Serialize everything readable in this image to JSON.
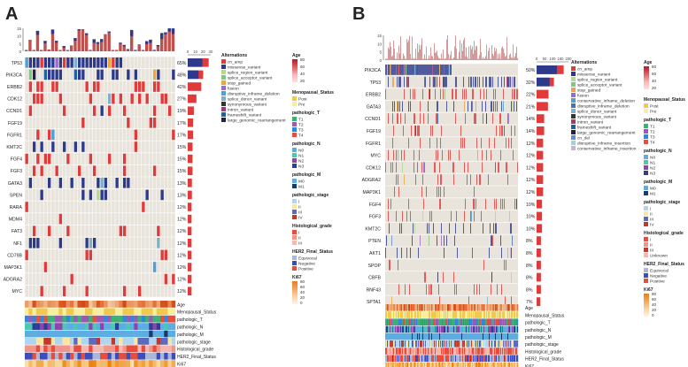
{
  "panels": [
    {
      "label": "A",
      "genes": [
        "TP53",
        "PIK3CA",
        "ERBB2",
        "CDK12",
        "CCND1",
        "FGF19",
        "FGFR1",
        "KMT2C",
        "FGF4",
        "FGF3",
        "GATA3",
        "SPEN",
        "RARA",
        "MDM4",
        "FAT3",
        "NF1",
        "CD79B",
        "MAP3K1",
        "ADGRA2",
        "MYC"
      ],
      "percents": [
        "65%",
        "48%",
        "42%",
        "27%",
        "19%",
        "17%",
        "17%",
        "15%",
        "15%",
        "15%",
        "13%",
        "13%",
        "12%",
        "12%",
        "12%",
        "12%",
        "12%",
        "12%",
        "12%",
        "12%"
      ],
      "bar_axis_ticks": [
        "0",
        "10",
        "20",
        "30"
      ],
      "tmb_axis_ticks": [
        "15",
        "10",
        "5",
        "0"
      ],
      "sample_count": 40,
      "alterations_title": "Alternations",
      "alterations": [
        {
          "label": "cn_amp",
          "color": "#e03a3a"
        },
        {
          "label": "missense_variant",
          "color": "#2d3a8c"
        },
        {
          "label": "splice_region_variant",
          "color": "#b3d98b"
        },
        {
          "label": "splice_acceptor_variant",
          "color": "#7fc97f"
        },
        {
          "label": "stop_gained",
          "color": "#f1a33b"
        },
        {
          "label": "fusion",
          "color": "#9c6ad0"
        },
        {
          "label": "disruptive_inframe_deletion",
          "color": "#4aa1d6"
        },
        {
          "label": "splice_donor_variant",
          "color": "#7db0c9"
        },
        {
          "label": "synonymous_variant",
          "color": "#333333"
        },
        {
          "label": "intron_variant",
          "color": "#a23b72"
        },
        {
          "label": "frameshift_variant",
          "color": "#1f5fa8"
        },
        {
          "label": "large_genomic_rearrangement",
          "color": "#222244"
        }
      ],
      "annotations": [
        "Age",
        "Menopausal_Status",
        "pathologic_T",
        "pathologic_N",
        "pathologic_M",
        "pathologic_stage",
        "Histological_grade",
        "HER2_Final_Status",
        "Ki67"
      ]
    },
    {
      "label": "B",
      "genes": [
        "PIK3CA",
        "TP53",
        "ERBB2",
        "GATA3",
        "CCND1",
        "FGF19",
        "FGFR1",
        "MYC",
        "CDK12",
        "ADGRA2",
        "MAP3K1",
        "FGF4",
        "FGF3",
        "KMT2C",
        "PTEN",
        "AKT1",
        "SPOP",
        "CBFB",
        "RNF43",
        "SPTA1"
      ],
      "percents": [
        "50%",
        "32%",
        "22%",
        "21%",
        "14%",
        "14%",
        "12%",
        "12%",
        "12%",
        "12%",
        "12%",
        "10%",
        "10%",
        "10%",
        "8%",
        "8%",
        "8%",
        "8%",
        "8%",
        "7%"
      ],
      "bar_axis_ticks": [
        "0",
        "50",
        "100",
        "150",
        "200"
      ],
      "tmb_axis_ticks": [
        "15",
        "10",
        "5",
        "0"
      ],
      "sample_count": 150,
      "alterations_title": "Alternations",
      "alterations": [
        {
          "label": "cn_amp",
          "color": "#e03a3a"
        },
        {
          "label": "missense_variant",
          "color": "#2d3a8c"
        },
        {
          "label": "splice_region_variant",
          "color": "#b3d98b"
        },
        {
          "label": "splice_acceptor_variant",
          "color": "#7fc97f"
        },
        {
          "label": "stop_gained",
          "color": "#f1a33b"
        },
        {
          "label": "fusion",
          "color": "#9c6ad0"
        },
        {
          "label": "conservative_inframe_deletion",
          "color": "#4aa1d6"
        },
        {
          "label": "disruptive_inframe_deletion",
          "color": "#3c78b4"
        },
        {
          "label": "splice_donor_variant",
          "color": "#7db0c9"
        },
        {
          "label": "synonymous_variant",
          "color": "#333333"
        },
        {
          "label": "intron_variant",
          "color": "#a23b72"
        },
        {
          "label": "frameshift_variant",
          "color": "#1f5fa8"
        },
        {
          "label": "large_genomic_rearrangement",
          "color": "#222244"
        },
        {
          "label": "cn_del",
          "color": "#5b8fd6"
        },
        {
          "label": "disruptive_inframe_insertion",
          "color": "#a6cee3"
        },
        {
          "label": "conservative_inframe_insertion",
          "color": "#c7b1e0"
        }
      ],
      "annotations": [
        "Age",
        "Menopausal_Status",
        "pathologic_T",
        "pathologic_N",
        "pathologic_M",
        "pathologic_stage",
        "Histological_grade",
        "HER2_Final_Status",
        "Ki67"
      ]
    }
  ],
  "legends": {
    "age": {
      "title": "Age",
      "ticks": [
        "80",
        "60",
        "40",
        "20"
      ]
    },
    "menopausal": {
      "title": "Menopausal_Status",
      "items": [
        {
          "label": "Post",
          "color": "#f2c94c"
        },
        {
          "label": "Pre",
          "color": "#f7ee9e"
        }
      ]
    },
    "pathologic_t": {
      "title": "pathologic_T",
      "items": [
        {
          "label": "T1",
          "color": "#3bb273"
        },
        {
          "label": "T2",
          "color": "#9b59b6"
        },
        {
          "label": "T3",
          "color": "#2e86de"
        },
        {
          "label": "T4",
          "color": "#e74c3c"
        }
      ]
    },
    "pathologic_n": {
      "title": "pathologic_N",
      "items": [
        {
          "label": "N0",
          "color": "#5dade2"
        },
        {
          "label": "N1",
          "color": "#48c9b0"
        },
        {
          "label": "N2",
          "color": "#8e44ad"
        },
        {
          "label": "N3",
          "color": "#2c3e95"
        }
      ]
    },
    "pathologic_m": {
      "title": "pathologic_M",
      "items": [
        {
          "label": "M0",
          "color": "#5dade2"
        },
        {
          "label": "M1",
          "color": "#1b3a6b"
        }
      ]
    },
    "pathologic_stage": {
      "title": "pathologic_stage",
      "items": [
        {
          "label": "I",
          "color": "#aed6f1"
        },
        {
          "label": "II",
          "color": "#f9e79f"
        },
        {
          "label": "III",
          "color": "#5b6abf"
        },
        {
          "label": "IV",
          "color": "#c0392b"
        }
      ]
    },
    "histological_grade_a": {
      "title": "Histological_grade",
      "items": [
        {
          "label": "I",
          "color": "#e74c3c"
        },
        {
          "label": "II",
          "color": "#f1948a"
        },
        {
          "label": "III",
          "color": "#f5b7b1"
        }
      ]
    },
    "histological_grade_b": {
      "title": "Histological_grade",
      "items": [
        {
          "label": "I",
          "color": "#e74c3c"
        },
        {
          "label": "II",
          "color": "#f1948a"
        },
        {
          "label": "III",
          "color": "#c0392b"
        },
        {
          "label": "Unknown",
          "color": "#f5b7b1"
        }
      ]
    },
    "her2": {
      "title": "HER2_Final_Status",
      "items": [
        {
          "label": "Equivocal",
          "color": "#aab7d8"
        },
        {
          "label": "Negative",
          "color": "#3b4cc0"
        },
        {
          "label": "Positive",
          "color": "#e74c3c"
        }
      ]
    },
    "ki67": {
      "title": "Ki67",
      "ticks": [
        "80",
        "60",
        "40",
        "20",
        "0"
      ]
    }
  },
  "colors": {
    "cell_bg": "#e8e4dc",
    "amp": "#e03a3a",
    "missense": "#2d3a8c",
    "grid": "#ffffff",
    "annotation_row_colors": [
      "#e8a05a",
      "#f2c94c",
      "#6fb5d9",
      "#3b6fb6",
      "#8a9bd4",
      "#c9b36b",
      "#d9534f",
      "#3b4cc0",
      "#f3b35b"
    ]
  }
}
